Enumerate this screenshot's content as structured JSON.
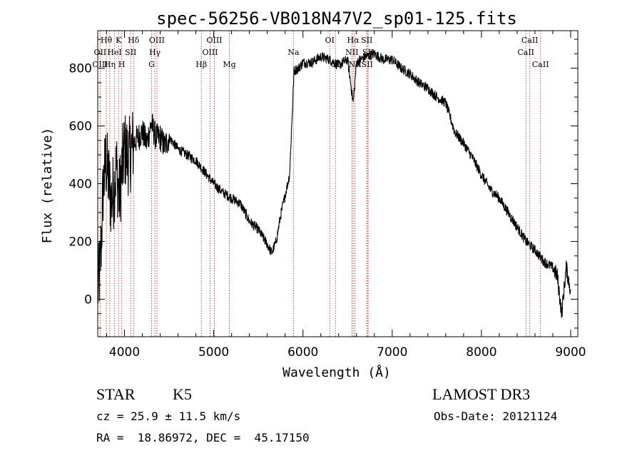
{
  "chart_data": {
    "type": "line",
    "title": "spec-56256-VB018N47V2_sp01-125.fits",
    "xlabel": "Wavelength (Å)",
    "ylabel": "Flux (relative)",
    "xlim": [
      3700,
      9080
    ],
    "ylim": [
      -130,
      930
    ],
    "xticks": [
      4000,
      5000,
      6000,
      7000,
      8000,
      9000
    ],
    "yticks": [
      0,
      200,
      400,
      600,
      800
    ],
    "grid": false,
    "series": [
      {
        "name": "spectrum",
        "x": [
          3700,
          3730,
          3760,
          3790,
          3820,
          3850,
          3880,
          3910,
          3940,
          3970,
          4000,
          4050,
          4100,
          4150,
          4200,
          4250,
          4300,
          4350,
          4400,
          4450,
          4500,
          4600,
          4700,
          4800,
          4900,
          5000,
          5100,
          5200,
          5300,
          5400,
          5500,
          5600,
          5650,
          5700,
          5750,
          5800,
          5850,
          5900,
          5950,
          6000,
          6100,
          6200,
          6300,
          6400,
          6500,
          6563,
          6600,
          6700,
          6800,
          6900,
          7000,
          7100,
          7200,
          7300,
          7400,
          7500,
          7600,
          7700,
          7800,
          7900,
          8000,
          8100,
          8200,
          8300,
          8400,
          8500,
          8600,
          8700,
          8800,
          8850,
          8900,
          8950,
          9000
        ],
        "y": [
          30,
          120,
          380,
          480,
          420,
          340,
          380,
          460,
          350,
          440,
          520,
          490,
          540,
          560,
          580,
          540,
          610,
          560,
          560,
          530,
          560,
          520,
          500,
          480,
          440,
          400,
          370,
          350,
          330,
          270,
          240,
          190,
          160,
          200,
          290,
          360,
          430,
          790,
          800,
          820,
          820,
          840,
          830,
          810,
          830,
          680,
          820,
          840,
          850,
          830,
          830,
          800,
          780,
          750,
          730,
          700,
          680,
          580,
          540,
          490,
          430,
          380,
          350,
          300,
          250,
          200,
          170,
          130,
          110,
          80,
          -50,
          110,
          30
        ]
      }
    ],
    "lines": [
      {
        "label": "Hθ",
        "x": 3797,
        "row": 0
      },
      {
        "label": "OII",
        "x": 3727,
        "row": 1
      },
      {
        "label": "OIII",
        "x": 3727,
        "row": 2
      },
      {
        "label": "Hη",
        "x": 3835,
        "row": 2
      },
      {
        "label": "HeI",
        "x": 3889,
        "row": 1
      },
      {
        "label": "K",
        "x": 3934,
        "row": 0
      },
      {
        "label": "H",
        "x": 3969,
        "row": 2
      },
      {
        "label": "SII",
        "x": 4070,
        "row": 1
      },
      {
        "label": "Hδ",
        "x": 4102,
        "row": 0
      },
      {
        "label": "OIII",
        "x": 4363,
        "row": 0
      },
      {
        "label": "Hγ",
        "x": 4340,
        "row": 1
      },
      {
        "label": "G",
        "x": 4304,
        "row": 2
      },
      {
        "label": "Hβ",
        "x": 4861,
        "row": 2
      },
      {
        "label": "OIII",
        "x": 5007,
        "row": 0
      },
      {
        "label": "OIII",
        "x": 4959,
        "row": 1
      },
      {
        "label": "Mg",
        "x": 5175,
        "row": 2
      },
      {
        "label": "Na",
        "x": 5893,
        "row": 1
      },
      {
        "label": "OI",
        "x": 6300,
        "row": 0
      },
      {
        "label": "OI",
        "x": 6364,
        "row": 2
      },
      {
        "label": "Hα",
        "x": 6563,
        "row": 0
      },
      {
        "label": "NII",
        "x": 6548,
        "row": 1
      },
      {
        "label": "NII",
        "x": 6583,
        "row": 2
      },
      {
        "label": "SII",
        "x": 6716,
        "row": 0
      },
      {
        "label": "SII",
        "x": 6731,
        "row": 1
      },
      {
        "label": "SII",
        "x": 6720,
        "row": 2
      },
      {
        "label": "CaII",
        "x": 8542,
        "row": 0
      },
      {
        "label": "CaII",
        "x": 8498,
        "row": 1
      },
      {
        "label": "CaII",
        "x": 8662,
        "row": 2
      }
    ]
  },
  "info": {
    "object_class": "STAR",
    "subclass": "K5",
    "survey": "LAMOST DR3",
    "redshift": "cz = 25.9 ± 11.5 km/s",
    "obs_date": "Obs-Date: 20121124",
    "coords": "RA =  18.86972, DEC =  45.17150"
  },
  "colors": {
    "line_marker": "#c0392b",
    "spectrum": "#000000",
    "axis": "#000000"
  }
}
